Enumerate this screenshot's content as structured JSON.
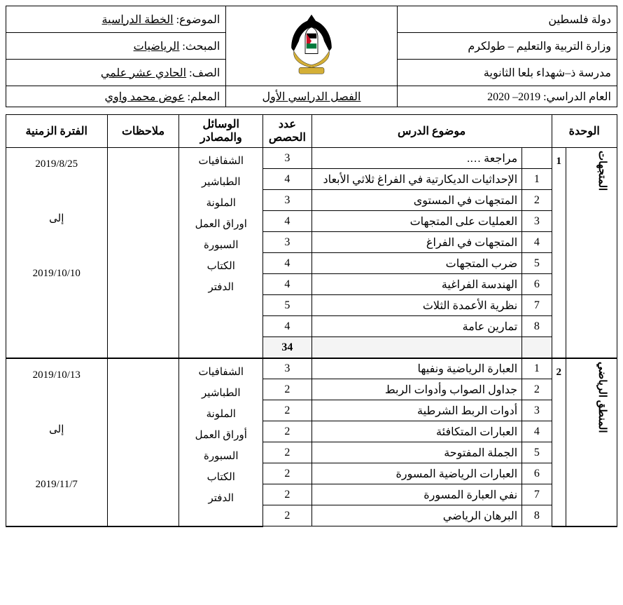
{
  "header": {
    "country": "دولة فلسطين",
    "ministry": "وزارة التربية والتعليم – طولكرم",
    "school": "مدرسة ذ–شهداء بلعا الثانوية",
    "year_label": "العام الدراسي:",
    "year_value": "2019– 2020",
    "semester": "الفصل الدراسي الأول",
    "subject_label": "الموضوع:",
    "subject_value": "الخطة الدراسية",
    "course_label": "المبحث:",
    "course_value": "الرياضيات",
    "grade_label": "الصف:",
    "grade_value": "الحادي عشر علمي",
    "teacher_label": "المعلم:",
    "teacher_value": "عوض محمد واوي"
  },
  "columns": {
    "unit": "الوحدة",
    "topic": "موضوع الدرس",
    "count": "عدد الحصص",
    "resources": "الوسائل والمصادر",
    "notes": "ملاحظات",
    "time": "الفترة الزمنية"
  },
  "units": [
    {
      "num": "1",
      "title": "المتجهات",
      "resources": "الشفافيات\nالطباشير\nالملونة\nاوراق العمل\nالسبورة\nالكتاب\nالدفتر",
      "time": "2019/8/25\n\nإلى\n\n2019/10/10",
      "rows": [
        {
          "n": "",
          "topic": "مراجعة ….",
          "count": "3"
        },
        {
          "n": "1",
          "topic": "الإحداثيات الديكارتية في الفراغ ثلاثي الأبعاد",
          "count": "4"
        },
        {
          "n": "2",
          "topic": "المتجهات في المستوى",
          "count": "3"
        },
        {
          "n": "3",
          "topic": "العمليات على المتجهات",
          "count": "4"
        },
        {
          "n": "4",
          "topic": "المتجهات في الفراغ",
          "count": "3"
        },
        {
          "n": "5",
          "topic": "ضرب المتجهات",
          "count": "4"
        },
        {
          "n": "6",
          "topic": "الهندسة الفراغية",
          "count": "4"
        },
        {
          "n": "7",
          "topic": "نظرية الأعمدة الثلاث",
          "count": "5"
        },
        {
          "n": "8",
          "topic": "تمارين عامة",
          "count": "4"
        }
      ],
      "total": "34"
    },
    {
      "num": "2",
      "title": "المنطق الرياضي",
      "resources": "الشفافيات\nالطباشير\nالملونة\nأوراق العمل\nالسبورة\nالكتاب\nالدفتر",
      "time": "2019/10/13\n\nإلى\n\n2019/11/7",
      "rows": [
        {
          "n": "1",
          "topic": "العبارة الرياضية ونفيها",
          "count": "3"
        },
        {
          "n": "2",
          "topic": "جداول الصواب وأدوات الربط",
          "count": "2"
        },
        {
          "n": "3",
          "topic": "أدوات الربط الشرطية",
          "count": "2"
        },
        {
          "n": "4",
          "topic": "العبارات المتكافئة",
          "count": "2"
        },
        {
          "n": "5",
          "topic": "الجملة المفتوحة",
          "count": "2"
        },
        {
          "n": "6",
          "topic": "العبارات الرياضية المسورة",
          "count": "2"
        },
        {
          "n": "7",
          "topic": "نفي العبارة المسورة",
          "count": "2"
        },
        {
          "n": "8",
          "topic": "البرهان الرياضي",
          "count": "2"
        }
      ]
    }
  ]
}
